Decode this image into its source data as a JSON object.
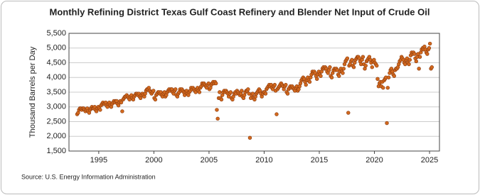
{
  "chart_data": {
    "type": "scatter",
    "title": "Monthly Refining District Texas Gulf Coast Refinery and Blender Net Input of Crude Oil",
    "y_label": "Thousand Barrels per Day",
    "source": "Source: U.S. Energy Information Administration",
    "color": "#d2691e",
    "grid": true,
    "xlim": [
      1992.3,
      2025.9
    ],
    "xticks": [
      1995,
      2000,
      2005,
      2010,
      2015,
      2020,
      2025
    ],
    "ylim": [
      1500,
      5500
    ],
    "yticks": [
      {
        "value": 1500,
        "label": "1,500"
      },
      {
        "value": 2000,
        "label": "2,000"
      },
      {
        "value": 2500,
        "label": "2,500"
      },
      {
        "value": 3000,
        "label": "3,000"
      },
      {
        "value": 3500,
        "label": "3,500"
      },
      {
        "value": 4000,
        "label": "4,000"
      },
      {
        "value": 4500,
        "label": "4,500"
      },
      {
        "value": 5000,
        "label": "5,000"
      },
      {
        "value": 5500,
        "label": "5,500"
      }
    ],
    "x": [
      1993.04,
      1993.13,
      1993.21,
      1993.29,
      1993.38,
      1993.46,
      1993.54,
      1993.63,
      1993.71,
      1993.79,
      1993.88,
      1993.96,
      1994.04,
      1994.13,
      1994.21,
      1994.29,
      1994.38,
      1994.46,
      1994.54,
      1994.63,
      1994.71,
      1994.79,
      1994.88,
      1994.96,
      1995.04,
      1995.13,
      1995.21,
      1995.29,
      1995.38,
      1995.46,
      1995.54,
      1995.63,
      1995.71,
      1995.79,
      1995.88,
      1995.96,
      1996.04,
      1996.13,
      1996.21,
      1996.29,
      1996.38,
      1996.46,
      1996.54,
      1996.63,
      1996.71,
      1996.79,
      1996.88,
      1996.96,
      1997.04,
      1997.13,
      1997.21,
      1997.29,
      1997.38,
      1997.46,
      1997.54,
      1997.63,
      1997.71,
      1997.79,
      1997.88,
      1997.96,
      1998.04,
      1998.13,
      1998.21,
      1998.29,
      1998.38,
      1998.46,
      1998.54,
      1998.63,
      1998.71,
      1998.79,
      1998.88,
      1998.96,
      1999.04,
      1999.13,
      1999.21,
      1999.29,
      1999.38,
      1999.46,
      1999.54,
      1999.63,
      1999.71,
      1999.79,
      1999.88,
      1999.96,
      2000.04,
      2000.13,
      2000.21,
      2000.29,
      2000.38,
      2000.46,
      2000.54,
      2000.63,
      2000.71,
      2000.79,
      2000.88,
      2000.96,
      2001.04,
      2001.13,
      2001.21,
      2001.29,
      2001.38,
      2001.46,
      2001.54,
      2001.63,
      2001.71,
      2001.79,
      2001.88,
      2001.96,
      2002.04,
      2002.13,
      2002.21,
      2002.29,
      2002.38,
      2002.46,
      2002.54,
      2002.63,
      2002.71,
      2002.79,
      2002.88,
      2002.96,
      2003.04,
      2003.13,
      2003.21,
      2003.29,
      2003.38,
      2003.46,
      2003.54,
      2003.63,
      2003.71,
      2003.79,
      2003.88,
      2003.96,
      2004.04,
      2004.13,
      2004.21,
      2004.29,
      2004.38,
      2004.46,
      2004.54,
      2004.63,
      2004.71,
      2004.79,
      2004.88,
      2004.96,
      2005.04,
      2005.13,
      2005.21,
      2005.29,
      2005.38,
      2005.46,
      2005.54,
      2005.63,
      2005.71,
      2005.79,
      2005.88,
      2005.96,
      2006.04,
      2006.13,
      2006.21,
      2006.29,
      2006.38,
      2006.46,
      2006.54,
      2006.63,
      2006.71,
      2006.79,
      2006.88,
      2006.96,
      2007.04,
      2007.13,
      2007.21,
      2007.29,
      2007.38,
      2007.46,
      2007.54,
      2007.63,
      2007.71,
      2007.79,
      2007.88,
      2007.96,
      2008.04,
      2008.13,
      2008.21,
      2008.29,
      2008.38,
      2008.46,
      2008.54,
      2008.63,
      2008.71,
      2008.79,
      2008.88,
      2008.96,
      2009.04,
      2009.13,
      2009.21,
      2009.29,
      2009.38,
      2009.46,
      2009.54,
      2009.63,
      2009.71,
      2009.79,
      2009.88,
      2009.96,
      2010.04,
      2010.13,
      2010.21,
      2010.29,
      2010.38,
      2010.46,
      2010.54,
      2010.63,
      2010.71,
      2010.79,
      2010.88,
      2010.96,
      2011.04,
      2011.13,
      2011.21,
      2011.29,
      2011.38,
      2011.46,
      2011.54,
      2011.63,
      2011.71,
      2011.79,
      2011.88,
      2011.96,
      2012.04,
      2012.13,
      2012.21,
      2012.29,
      2012.38,
      2012.46,
      2012.54,
      2012.63,
      2012.71,
      2012.79,
      2012.88,
      2012.96,
      2013.04,
      2013.13,
      2013.21,
      2013.29,
      2013.38,
      2013.46,
      2013.54,
      2013.63,
      2013.71,
      2013.79,
      2013.88,
      2013.96,
      2014.04,
      2014.13,
      2014.21,
      2014.29,
      2014.38,
      2014.46,
      2014.54,
      2014.63,
      2014.71,
      2014.79,
      2014.88,
      2014.96,
      2015.04,
      2015.13,
      2015.21,
      2015.29,
      2015.38,
      2015.46,
      2015.54,
      2015.63,
      2015.71,
      2015.79,
      2015.88,
      2015.96,
      2016.04,
      2016.13,
      2016.21,
      2016.29,
      2016.38,
      2016.46,
      2016.54,
      2016.63,
      2016.71,
      2016.79,
      2016.88,
      2016.96,
      2017.04,
      2017.13,
      2017.21,
      2017.29,
      2017.38,
      2017.46,
      2017.54,
      2017.63,
      2017.71,
      2017.79,
      2017.88,
      2017.96,
      2018.04,
      2018.13,
      2018.21,
      2018.29,
      2018.38,
      2018.46,
      2018.54,
      2018.63,
      2018.71,
      2018.79,
      2018.88,
      2018.96,
      2019.04,
      2019.13,
      2019.21,
      2019.29,
      2019.38,
      2019.46,
      2019.54,
      2019.63,
      2019.71,
      2019.79,
      2019.88,
      2019.96,
      2020.04,
      2020.13,
      2020.21,
      2020.29,
      2020.38,
      2020.46,
      2020.54,
      2020.63,
      2020.71,
      2020.79,
      2020.88,
      2020.96,
      2021.04,
      2021.13,
      2021.21,
      2021.29,
      2021.38,
      2021.46,
      2021.54,
      2021.63,
      2021.71,
      2021.79,
      2021.88,
      2021.96,
      2022.04,
      2022.13,
      2022.21,
      2022.29,
      2022.38,
      2022.46,
      2022.54,
      2022.63,
      2022.71,
      2022.79,
      2022.88,
      2022.96,
      2023.04,
      2023.13,
      2023.21,
      2023.29,
      2023.38,
      2023.46,
      2023.54,
      2023.63,
      2023.71,
      2023.79,
      2023.88,
      2023.96,
      2024.04,
      2024.13,
      2024.21,
      2024.29,
      2024.38,
      2024.46,
      2024.54,
      2024.63,
      2024.71,
      2024.79,
      2024.88,
      2024.96,
      2025.04,
      2025.13,
      2025.21
    ],
    "values": [
      2750,
      2800,
      2900,
      2950,
      2950,
      2900,
      2950,
      2950,
      2900,
      2850,
      2900,
      2950,
      2850,
      2800,
      2900,
      2950,
      3000,
      2950,
      2950,
      3000,
      2900,
      2850,
      2950,
      3000,
      2950,
      2900,
      3050,
      3100,
      3150,
      3100,
      3100,
      3150,
      3050,
      3000,
      3100,
      3150,
      3050,
      3000,
      3100,
      3150,
      3200,
      3150,
      3200,
      3200,
      3100,
      3050,
      3150,
      3200,
      3150,
      2850,
      3250,
      3300,
      3350,
      3350,
      3400,
      3350,
      3300,
      3250,
      3350,
      3400,
      3300,
      3250,
      3350,
      3400,
      3450,
      3450,
      3400,
      3450,
      3350,
      3300,
      3400,
      3450,
      3400,
      3350,
      3450,
      3550,
      3600,
      3600,
      3650,
      3550,
      3500,
      3450,
      3500,
      3550,
      3300,
      3250,
      3400,
      3450,
      3500,
      3500,
      3450,
      3500,
      3400,
      3350,
      3450,
      3500,
      3350,
      3400,
      3500,
      3550,
      3600,
      3550,
      3600,
      3600,
      3500,
      3450,
      3550,
      3600,
      3400,
      3350,
      3450,
      3500,
      3600,
      3550,
      3600,
      3550,
      3500,
      3400,
      3500,
      3550,
      3450,
      3400,
      3500,
      3550,
      3650,
      3600,
      3650,
      3600,
      3550,
      3500,
      3600,
      3650,
      3550,
      3500,
      3650,
      3700,
      3800,
      3750,
      3800,
      3750,
      3700,
      3650,
      3750,
      3800,
      3600,
      3650,
      3750,
      3800,
      3850,
      3800,
      3850,
      3800,
      2900,
      2600,
      3300,
      3500,
      3300,
      3250,
      3400,
      3500,
      3550,
      3500,
      3550,
      3500,
      3450,
      3350,
      3450,
      3500,
      3300,
      3250,
      3350,
      3450,
      3500,
      3450,
      3550,
      3500,
      3450,
      3400,
      3450,
      3550,
      3350,
      3300,
      3400,
      3500,
      3550,
      3550,
      3600,
      3450,
      1950,
      3300,
      3400,
      3450,
      3300,
      3250,
      3350,
      3450,
      3500,
      3550,
      3600,
      3550,
      3450,
      3350,
      3450,
      3500,
      3500,
      3450,
      3600,
      3650,
      3700,
      3750,
      3700,
      3750,
      3650,
      3600,
      3700,
      3750,
      3550,
      2750,
      3600,
      3650,
      3700,
      3750,
      3800,
      3750,
      3700,
      3600,
      3700,
      3750,
      3500,
      3450,
      3600,
      3650,
      3700,
      3650,
      3700,
      3650,
      3600,
      3550,
      3650,
      3700,
      3550,
      3600,
      3700,
      3800,
      3900,
      3950,
      4000,
      3950,
      3850,
      3750,
      3900,
      4000,
      3900,
      3850,
      4000,
      4100,
      4200,
      4150,
      4200,
      4150,
      4050,
      3950,
      4100,
      4200,
      4100,
      4050,
      4200,
      4300,
      4350,
      4300,
      4350,
      4300,
      4200,
      4150,
      4250,
      4350,
      4050,
      4000,
      4150,
      4250,
      4300,
      4250,
      4300,
      4250,
      4100,
      4050,
      4200,
      4300,
      4200,
      4150,
      4300,
      4450,
      4550,
      4600,
      4650,
      2800,
      4400,
      4450,
      4550,
      4600,
      4400,
      4350,
      4500,
      4600,
      4650,
      4700,
      4700,
      4650,
      4550,
      4450,
      4600,
      4700,
      4450,
      4300,
      4400,
      4550,
      4600,
      4650,
      4700,
      4600,
      4500,
      4350,
      4550,
      4600,
      4500,
      4450,
      4400,
      3950,
      3700,
      3800,
      3850,
      3700,
      3850,
      3650,
      3900,
      3950,
      4000,
      2450,
      3650,
      4000,
      4150,
      4250,
      4300,
      4200,
      4100,
      4050,
      4250,
      4300,
      4300,
      4350,
      4450,
      4550,
      4600,
      4700,
      4650,
      4600,
      4500,
      4450,
      4600,
      4650,
      4500,
      4450,
      4600,
      4750,
      4850,
      4800,
      4850,
      4800,
      4650,
      4550,
      4700,
      4800,
      4300,
      4700,
      4850,
      4950,
      5000,
      4950,
      5050,
      4950,
      4850,
      4800,
      4950,
      5000,
      5150,
      4300,
      4350
    ]
  }
}
